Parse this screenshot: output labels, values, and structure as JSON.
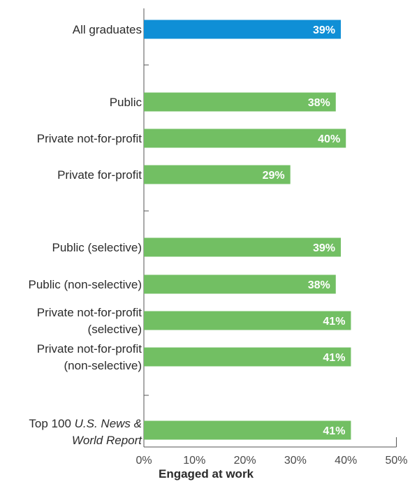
{
  "chart_data": {
    "type": "bar",
    "orientation": "horizontal",
    "xlabel": "Engaged at work",
    "xlim": [
      0,
      50
    ],
    "xticks": [
      "0%",
      "10%",
      "20%",
      "30%",
      "40%",
      "50%"
    ],
    "colors": {
      "highlight": "#0f8fd6",
      "default": "#72bf63"
    },
    "categories": [
      {
        "lines": [
          "All graduates"
        ],
        "value": 39,
        "label": "39%",
        "color": "highlight"
      },
      {
        "lines": [
          "Public"
        ],
        "value": 38,
        "label": "38%",
        "color": "default"
      },
      {
        "lines": [
          "Private not-for-profit"
        ],
        "value": 40,
        "label": "40%",
        "color": "default"
      },
      {
        "lines": [
          "Private for-profit"
        ],
        "value": 29,
        "label": "29%",
        "color": "default"
      },
      {
        "lines": [
          "Public (selective)"
        ],
        "value": 39,
        "label": "39%",
        "color": "default"
      },
      {
        "lines": [
          "Public (non-selective)"
        ],
        "value": 38,
        "label": "38%",
        "color": "default"
      },
      {
        "lines": [
          "Private not-for-profit",
          "(selective)"
        ],
        "value": 41,
        "label": "41%",
        "color": "default"
      },
      {
        "lines": [
          "Private not-for-profit",
          "(non-selective)"
        ],
        "value": 41,
        "label": "41%",
        "color": "default"
      },
      {
        "lines": [
          "Top 100 ",
          "U.S. News &",
          "World Report"
        ],
        "italic": [
          false,
          true,
          true
        ],
        "value": 41,
        "label": "41%",
        "color": "default"
      }
    ]
  }
}
